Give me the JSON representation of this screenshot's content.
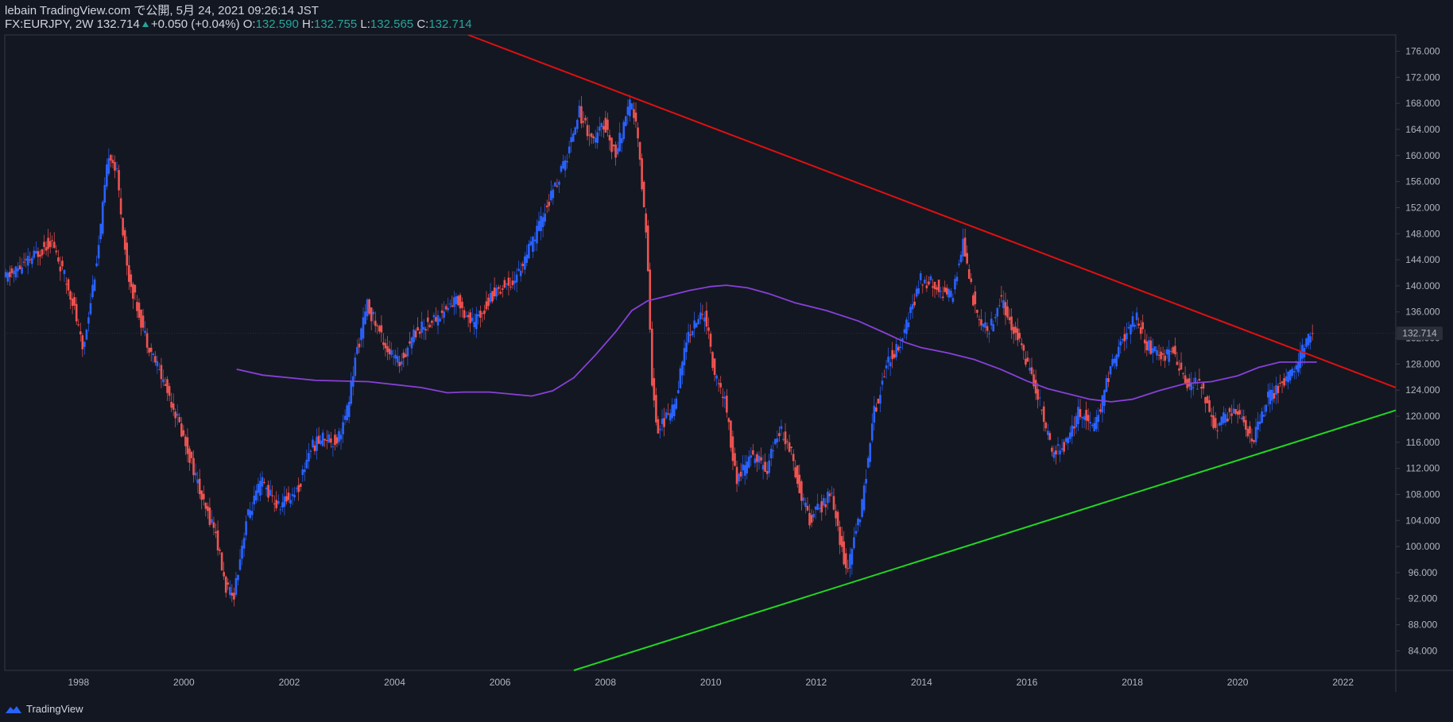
{
  "header": {
    "publisher": "lebain TradingView.com で公開, 5月 24, 2021 09:26:14 JST",
    "symbol_line": "FX:EURJPY, 2W 132.714",
    "change": "+0.050 (+0.04%)",
    "open_label": "O:",
    "open_value": "132.590",
    "high_label": "H:",
    "high_value": "132.755",
    "low_label": "L:",
    "low_value": "132.565",
    "close_label": "C:",
    "close_value": "132.714"
  },
  "footer": {
    "brand": "TradingView"
  },
  "colors": {
    "background": "#131722",
    "bull": "#2962ff",
    "bear": "#ef5350",
    "resistance": "#e01010",
    "support": "#22d822",
    "moving_average": "#8840d8",
    "up_text": "#26a69a"
  },
  "chart_data": {
    "type": "candlestick",
    "symbol": "FX:EURJPY",
    "interval": "2W",
    "x_range": [
      1996.6,
      2023.0
    ],
    "y_range": [
      81.0,
      178.5
    ],
    "x_ticks": [
      "1998",
      "2000",
      "2002",
      "2004",
      "2006",
      "2008",
      "2010",
      "2012",
      "2014",
      "2016",
      "2018",
      "2020",
      "2022"
    ],
    "y_ticks": [
      "84.000",
      "88.000",
      "92.000",
      "96.000",
      "100.000",
      "104.000",
      "108.000",
      "112.000",
      "116.000",
      "120.000",
      "124.000",
      "128.000",
      "132.000",
      "136.000",
      "140.000",
      "144.000",
      "148.000",
      "152.000",
      "156.000",
      "160.000",
      "164.000",
      "168.000",
      "172.000",
      "176.000"
    ],
    "last_price": "132.714",
    "price_path": [
      [
        1996.6,
        141
      ],
      [
        1997.1,
        144
      ],
      [
        1997.5,
        147
      ],
      [
        1997.9,
        138
      ],
      [
        1998.1,
        130
      ],
      [
        1998.4,
        146
      ],
      [
        1998.6,
        161
      ],
      [
        1998.75,
        157
      ],
      [
        1998.95,
        142
      ],
      [
        1999.3,
        132
      ],
      [
        1999.8,
        122
      ],
      [
        2000.2,
        112
      ],
      [
        2000.4,
        106
      ],
      [
        2000.6,
        103
      ],
      [
        2000.8,
        94
      ],
      [
        2000.95,
        92
      ],
      [
        2001.2,
        104
      ],
      [
        2001.5,
        110
      ],
      [
        2001.8,
        106
      ],
      [
        2002.2,
        109
      ],
      [
        2002.4,
        115
      ],
      [
        2002.7,
        117
      ],
      [
        2002.9,
        116
      ],
      [
        2003.1,
        120
      ],
      [
        2003.3,
        130
      ],
      [
        2003.5,
        137
      ],
      [
        2003.9,
        130
      ],
      [
        2004.1,
        128
      ],
      [
        2004.4,
        133
      ],
      [
        2004.8,
        135
      ],
      [
        2005.2,
        138
      ],
      [
        2005.5,
        134
      ],
      [
        2005.9,
        139
      ],
      [
        2006.3,
        141
      ],
      [
        2006.6,
        146
      ],
      [
        2006.9,
        152
      ],
      [
        2007.3,
        160
      ],
      [
        2007.5,
        167
      ],
      [
        2007.8,
        162
      ],
      [
        2008.0,
        165
      ],
      [
        2008.2,
        160
      ],
      [
        2008.5,
        168
      ],
      [
        2008.6,
        165
      ],
      [
        2008.8,
        148
      ],
      [
        2008.9,
        126
      ],
      [
        2009.0,
        118
      ],
      [
        2009.3,
        121
      ],
      [
        2009.6,
        133
      ],
      [
        2009.9,
        136
      ],
      [
        2010.1,
        126
      ],
      [
        2010.3,
        122
      ],
      [
        2010.5,
        110
      ],
      [
        2010.8,
        114
      ],
      [
        2011.1,
        112
      ],
      [
        2011.3,
        118
      ],
      [
        2011.5,
        116
      ],
      [
        2011.7,
        109
      ],
      [
        2011.9,
        104
      ],
      [
        2012.1,
        106
      ],
      [
        2012.3,
        108
      ],
      [
        2012.5,
        100
      ],
      [
        2012.6,
        96
      ],
      [
        2012.9,
        107
      ],
      [
        2013.1,
        120
      ],
      [
        2013.4,
        129
      ],
      [
        2013.6,
        131
      ],
      [
        2013.9,
        138
      ],
      [
        2014.0,
        141
      ],
      [
        2014.3,
        140
      ],
      [
        2014.6,
        138
      ],
      [
        2014.8,
        147
      ],
      [
        2014.95,
        140
      ],
      [
        2015.1,
        134
      ],
      [
        2015.3,
        133
      ],
      [
        2015.5,
        138
      ],
      [
        2015.8,
        133
      ],
      [
        2015.95,
        130
      ],
      [
        2016.2,
        124
      ],
      [
        2016.5,
        114
      ],
      [
        2016.8,
        116
      ],
      [
        2017.0,
        121
      ],
      [
        2017.3,
        118
      ],
      [
        2017.6,
        127
      ],
      [
        2017.9,
        133
      ],
      [
        2018.1,
        135
      ],
      [
        2018.3,
        131
      ],
      [
        2018.6,
        129
      ],
      [
        2018.8,
        130
      ],
      [
        2019.0,
        125
      ],
      [
        2019.3,
        125
      ],
      [
        2019.6,
        118
      ],
      [
        2019.9,
        121
      ],
      [
        2020.1,
        120
      ],
      [
        2020.3,
        116
      ],
      [
        2020.6,
        123
      ],
      [
        2020.9,
        125
      ],
      [
        2021.1,
        127
      ],
      [
        2021.3,
        131
      ],
      [
        2021.4,
        132.7
      ]
    ],
    "overlays": [
      {
        "name": "resistance",
        "type": "trendline",
        "points": [
          [
            2005.4,
            178.5
          ],
          [
            2023.0,
            124.4
          ]
        ]
      },
      {
        "name": "support",
        "type": "trendline",
        "points": [
          [
            2007.4,
            81.0
          ],
          [
            2023.0,
            120.9
          ]
        ]
      },
      {
        "name": "moving_average",
        "type": "line",
        "points": [
          [
            2001.0,
            127.2
          ],
          [
            2001.5,
            126.3
          ],
          [
            2002.5,
            125.5
          ],
          [
            2003.5,
            125.3
          ],
          [
            2004.5,
            124.4
          ],
          [
            2005.0,
            123.6
          ],
          [
            2005.3,
            123.7
          ],
          [
            2005.8,
            123.7
          ],
          [
            2006.2,
            123.4
          ],
          [
            2006.6,
            123.1
          ],
          [
            2007.0,
            123.9
          ],
          [
            2007.4,
            125.9
          ],
          [
            2007.8,
            129.3
          ],
          [
            2008.2,
            133.0
          ],
          [
            2008.5,
            136.2
          ],
          [
            2008.8,
            137.7
          ],
          [
            2009.2,
            138.5
          ],
          [
            2009.6,
            139.3
          ],
          [
            2010.0,
            139.9
          ],
          [
            2010.3,
            140.1
          ],
          [
            2010.7,
            139.7
          ],
          [
            2011.1,
            138.8
          ],
          [
            2011.6,
            137.4
          ],
          [
            2012.2,
            136.2
          ],
          [
            2012.8,
            134.6
          ],
          [
            2013.3,
            132.8
          ],
          [
            2013.7,
            131.3
          ],
          [
            2014.0,
            130.5
          ],
          [
            2014.5,
            129.7
          ],
          [
            2015.0,
            128.7
          ],
          [
            2015.5,
            127.2
          ],
          [
            2016.0,
            125.4
          ],
          [
            2016.4,
            124.2
          ],
          [
            2016.8,
            123.4
          ],
          [
            2017.2,
            122.6
          ],
          [
            2017.6,
            122.2
          ],
          [
            2018.0,
            122.6
          ],
          [
            2018.5,
            123.9
          ],
          [
            2019.0,
            125.0
          ],
          [
            2019.5,
            125.3
          ],
          [
            2020.0,
            126.2
          ],
          [
            2020.4,
            127.5
          ],
          [
            2020.8,
            128.3
          ],
          [
            2021.2,
            128.3
          ],
          [
            2021.5,
            128.3
          ]
        ]
      }
    ]
  }
}
